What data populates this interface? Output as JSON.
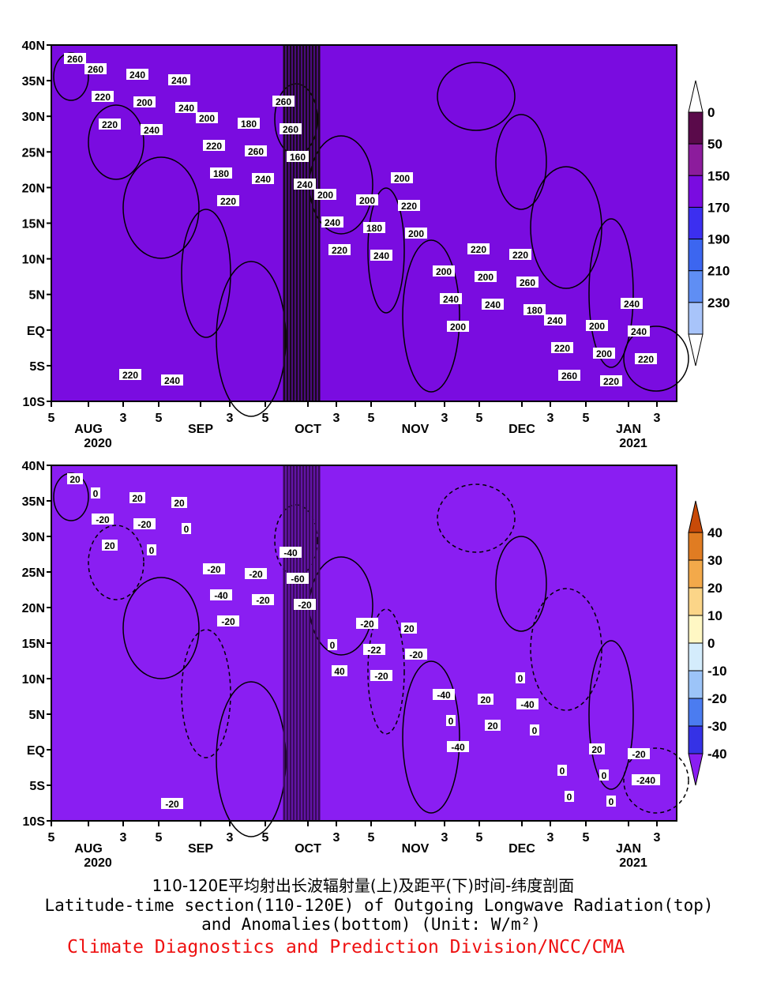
{
  "chart_data": [
    {
      "type": "heatmap",
      "panel": "top",
      "x_ticks": [
        "5",
        "AUG",
        "3",
        "5",
        "SEP",
        "3",
        "5",
        "OCT",
        "3",
        "5",
        "NOV",
        "3",
        "5",
        "DEC",
        "3",
        "5",
        "JAN",
        "3"
      ],
      "x_years": [
        "2020",
        "2021"
      ],
      "y_ticks": [
        "10S",
        "5S",
        "EQ",
        "5N",
        "10N",
        "15N",
        "20N",
        "25N",
        "30N",
        "35N",
        "40N"
      ],
      "ylim": [
        -10,
        40
      ],
      "colorbar": {
        "levels": [
          "0",
          "50",
          "150",
          "170",
          "190",
          "210",
          "230"
        ],
        "colors": [
          "#ffffff",
          "#5a0a4a",
          "#8c1c9c",
          "#7a0ce0",
          "#3c2ff0",
          "#3c66f0",
          "#5f8ef4",
          "#a8c4fa",
          "#ffffff"
        ]
      },
      "contour_labels": [
        "260",
        "240",
        "220",
        "240",
        "240",
        "200",
        "180",
        "220",
        "220",
        "240",
        "240",
        "220",
        "200",
        "240",
        "260",
        "220",
        "200",
        "180",
        "160",
        "180",
        "240",
        "260",
        "200",
        "220",
        "240",
        "260",
        "240",
        "220",
        "200",
        "220",
        "240",
        "240",
        "220",
        "260",
        "200",
        "200",
        "220",
        "200",
        "260",
        "240",
        "180",
        "200",
        "200",
        "220",
        "240",
        "240",
        "220",
        "200",
        "260"
      ],
      "missing_data_band": "OCT"
    },
    {
      "type": "heatmap",
      "panel": "bottom",
      "x_ticks": [
        "5",
        "AUG",
        "3",
        "5",
        "SEP",
        "3",
        "5",
        "OCT",
        "3",
        "5",
        "NOV",
        "3",
        "5",
        "DEC",
        "3",
        "5",
        "JAN",
        "3"
      ],
      "x_years": [
        "2020",
        "2021"
      ],
      "y_ticks": [
        "10S",
        "5S",
        "EQ",
        "5N",
        "10N",
        "15N",
        "20N",
        "25N",
        "30N",
        "35N",
        "40N"
      ],
      "ylim": [
        -10,
        40
      ],
      "colorbar": {
        "levels": [
          "40",
          "30",
          "20",
          "10",
          "0",
          "-10",
          "-20",
          "-30",
          "-40"
        ],
        "colors": [
          "#c84a08",
          "#e07c22",
          "#f3a94a",
          "#fbd588",
          "#fff7c4",
          "#d4ecfc",
          "#9cc4f8",
          "#4b7cf0",
          "#3532e6",
          "#8a1ef2"
        ]
      },
      "contour_labels": [
        "20",
        "0",
        "-20",
        "-20",
        "-20",
        "-40",
        "0",
        "0",
        "20",
        "0",
        "-20",
        "40",
        "-20",
        "20",
        "0",
        "-240",
        "-20",
        "-40",
        "-60",
        "-22",
        "0",
        "-40",
        "0",
        "-20",
        "20",
        "-20",
        "0",
        "20",
        "20",
        "0",
        "-20",
        "20",
        "-20",
        "-40",
        "-20",
        "-40",
        "0",
        "20",
        "0",
        "-20"
      ],
      "missing_data_band": "OCT"
    }
  ],
  "caption": {
    "line1": "110-120E平均射出长波辐射量(上)及距平(下)时间-纬度剖面",
    "line2": "Latitude-time section(110-120E) of Outgoing Longwave Radiation(top)",
    "line3": "and Anomalies(bottom) (Unit: W/m²)",
    "credit": "Climate Diagnostics and Prediction Division/NCC/CMA"
  }
}
